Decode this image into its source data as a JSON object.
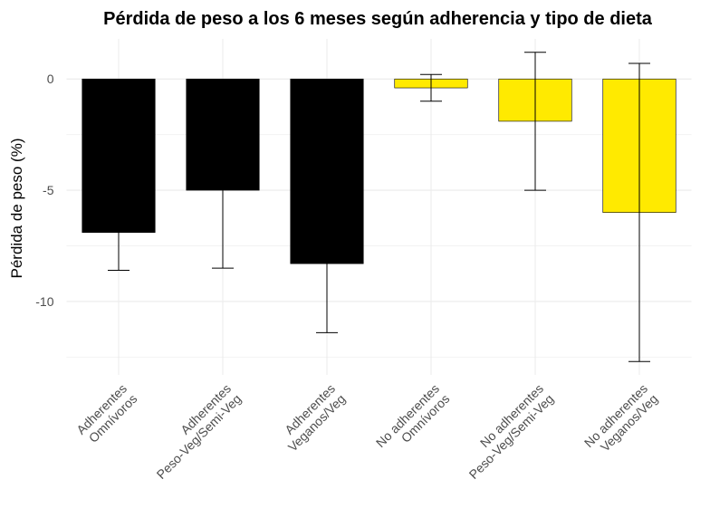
{
  "chart_data": {
    "type": "bar",
    "title": "Pérdida de peso a los 6 meses según adherencia y tipo de dieta",
    "y_label": "Pérdida de peso (%)",
    "categories": [
      "Adherentes\nOmnívoros",
      "Adherentes\nPeso-Veg/Semi-Veg",
      "Adherentes\nVeganos/Veg",
      "No adherentes\nOmnívoros",
      "No adherentes\nPeso-Veg/Semi-Veg",
      "No adherentes\nVeganos/Veg"
    ],
    "values": [
      -6.9,
      -5.0,
      -8.3,
      -0.4,
      -1.9,
      -6.0
    ],
    "errors": [
      1.7,
      3.5,
      3.1,
      0.6,
      3.1,
      6.7
    ],
    "colors": [
      "#000000",
      "#000000",
      "#000000",
      "#ffea00",
      "#ffea00",
      "#ffea00"
    ],
    "ylim": [
      -13.3,
      1.8
    ],
    "yticks": [
      -10,
      -5,
      0
    ],
    "minor_yticks": [
      -12.5,
      -7.5,
      -2.5
    ],
    "grid": true
  }
}
